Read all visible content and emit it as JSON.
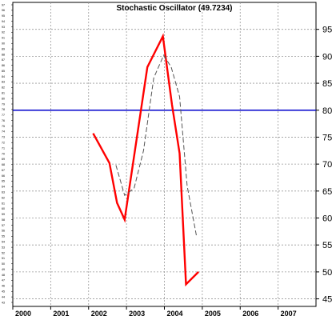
{
  "chart_data": {
    "type": "line",
    "title": "Stochastic Oscillator (49.7234)",
    "xlabel": "",
    "ylabel": "",
    "x_tick_labels": [
      "2000",
      "2001",
      "2002",
      "2003",
      "2004",
      "2005",
      "2006",
      "2007"
    ],
    "x_range": [
      2000.0,
      2008.0
    ],
    "y_tick_labels": [
      "45",
      "50",
      "55",
      "60",
      "65",
      "70",
      "75",
      "80",
      "85",
      "90",
      "95"
    ],
    "y_range": [
      43.6,
      100.0
    ],
    "left_axis_tick_labels": [
      "97",
      "96",
      "95",
      "94",
      "93",
      "92",
      "91",
      "90",
      "89",
      "88",
      "87",
      "86",
      "85",
      "84",
      "83",
      "82",
      "81",
      "80",
      "79",
      "78",
      "77",
      "76",
      "75",
      "74",
      "73",
      "72",
      "71",
      "70",
      "69",
      "68",
      "67",
      "66",
      "65",
      "64",
      "63",
      "62",
      "61",
      "60",
      "59",
      "58",
      "57",
      "56",
      "55",
      "54",
      "53",
      "52",
      "51",
      "50",
      "49",
      "48",
      "47",
      "46",
      "45",
      "44",
      "43"
    ],
    "reference_line": {
      "y": 80,
      "color": "#0000cc"
    },
    "grid": true,
    "series": [
      {
        "style": "solid",
        "color": "#ff0000",
        "points": [
          [
            2002.12,
            75.7
          ],
          [
            2002.55,
            70.2
          ],
          [
            2002.75,
            62.8
          ],
          [
            2002.95,
            59.7
          ],
          [
            2003.55,
            88.0
          ],
          [
            2003.75,
            90.8
          ],
          [
            2003.96,
            93.7
          ],
          [
            2004.2,
            81.0
          ],
          [
            2004.4,
            72.0
          ],
          [
            2004.57,
            47.7
          ],
          [
            2004.9,
            50.0
          ]
        ]
      },
      {
        "style": "dashed",
        "color": "#555555",
        "points": [
          [
            2002.72,
            69.8
          ],
          [
            2002.95,
            64.2
          ],
          [
            2003.2,
            65.5
          ],
          [
            2003.45,
            72.5
          ],
          [
            2003.72,
            86.0
          ],
          [
            2003.98,
            90.2
          ],
          [
            2004.18,
            88.0
          ],
          [
            2004.4,
            82.5
          ],
          [
            2004.6,
            66.0
          ],
          [
            2004.85,
            56.5
          ]
        ]
      }
    ]
  }
}
